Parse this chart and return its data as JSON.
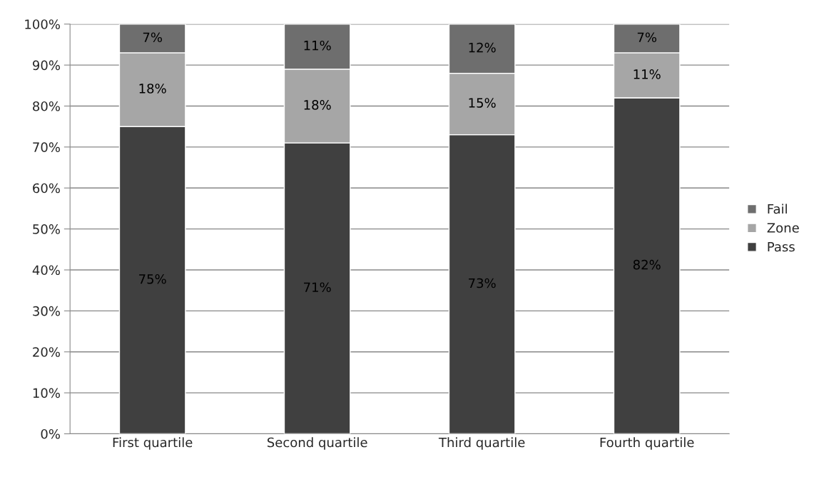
{
  "chart_data": {
    "type": "bar",
    "stacked": true,
    "categories": [
      "First quartile",
      "Second quartile",
      "Third quartile",
      "Fourth quartile"
    ],
    "series": [
      {
        "name": "Pass",
        "color": "#404040",
        "values": [
          75,
          71,
          73,
          82
        ],
        "value_labels": [
          "75%",
          "71%",
          "73%",
          "82%"
        ]
      },
      {
        "name": "Zone",
        "color": "#a6a6a6",
        "values": [
          18,
          18,
          15,
          11
        ],
        "value_labels": [
          "18%",
          "18%",
          "15%",
          "11%"
        ]
      },
      {
        "name": "Fail",
        "color": "#6e6e6e",
        "values": [
          7,
          11,
          12,
          7
        ],
        "value_labels": [
          "7%",
          "11%",
          "12%",
          "7%"
        ]
      }
    ],
    "ylim": [
      0,
      100
    ],
    "yticks": [
      {
        "value": 0,
        "label": "0%"
      },
      {
        "value": 10,
        "label": "10%"
      },
      {
        "value": 20,
        "label": "20%"
      },
      {
        "value": 30,
        "label": "30%"
      },
      {
        "value": 40,
        "label": "40%"
      },
      {
        "value": 50,
        "label": "50%"
      },
      {
        "value": 60,
        "label": "60%"
      },
      {
        "value": 70,
        "label": "70%"
      },
      {
        "value": 80,
        "label": "80%"
      },
      {
        "value": 90,
        "label": "90%"
      },
      {
        "value": 100,
        "label": "100%"
      }
    ],
    "grid": "y",
    "legend": "right"
  }
}
